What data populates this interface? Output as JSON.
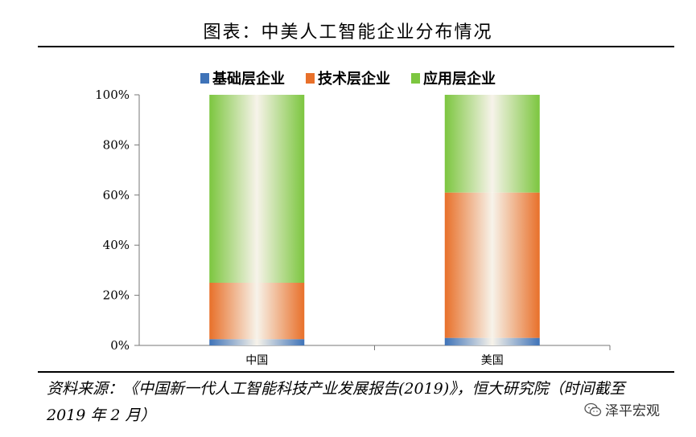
{
  "title": "图表：中美人工智能企业分布情况",
  "source_text": "资料来源：《中国新一代人工智能科技产业发展报告(2019)》，恒大研究院（时间截至 2019 年 2 月）",
  "watermark": {
    "text": "泽平宏观",
    "icon": "wechat-icon"
  },
  "colors": {
    "foundation": "#3f73b8",
    "technology": "#e8702a",
    "application": "#7cc63f"
  },
  "chart_data": {
    "type": "bar",
    "stacked": true,
    "percent": true,
    "categories": [
      "中国",
      "美国"
    ],
    "series": [
      {
        "name": "基础层企业",
        "values": [
          2.5,
          3.0
        ]
      },
      {
        "name": "技术层企业",
        "values": [
          22.5,
          58.0
        ]
      },
      {
        "name": "应用层企业",
        "values": [
          75.0,
          39.0
        ]
      }
    ],
    "ylim": [
      0,
      100
    ],
    "yticks": [
      "0%",
      "20%",
      "40%",
      "60%",
      "80%",
      "100%"
    ],
    "legend": "top",
    "grid": false
  }
}
